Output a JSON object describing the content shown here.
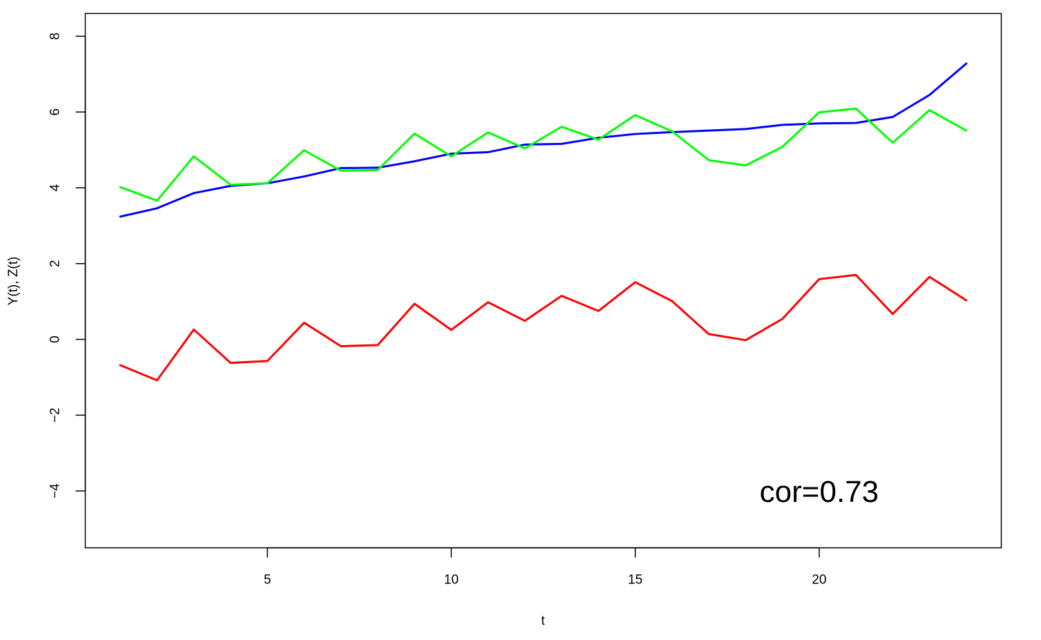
{
  "chart_data": {
    "type": "line",
    "xlabel": "t",
    "ylabel": "Y(t), Z(t)",
    "xlim": [
      0.05,
      24.95
    ],
    "ylim": [
      -5.5,
      8.6
    ],
    "xticks": [
      5,
      10,
      15,
      20
    ],
    "yticks": [
      -4,
      -2,
      0,
      2,
      4,
      6,
      8
    ],
    "x": [
      1,
      2,
      3,
      4,
      5,
      6,
      7,
      8,
      9,
      10,
      11,
      12,
      13,
      14,
      15,
      16,
      17,
      18,
      19,
      20,
      21,
      22,
      23,
      24
    ],
    "series": [
      {
        "color": "#0000ff",
        "values": [
          3.24,
          3.46,
          3.86,
          4.05,
          4.12,
          4.3,
          4.52,
          4.53,
          4.7,
          4.9,
          4.94,
          5.14,
          5.16,
          5.32,
          5.42,
          5.47,
          5.51,
          5.55,
          5.66,
          5.7,
          5.71,
          5.87,
          6.45,
          7.28
        ]
      },
      {
        "color": "#00ff00",
        "values": [
          4.02,
          3.66,
          4.83,
          4.08,
          4.12,
          4.99,
          4.45,
          4.47,
          5.43,
          4.83,
          5.46,
          5.04,
          5.61,
          5.27,
          5.92,
          5.49,
          4.73,
          4.59,
          5.08,
          5.99,
          6.09,
          5.19,
          6.05,
          5.51
        ]
      },
      {
        "color": "#ff0000",
        "values": [
          -0.68,
          -1.08,
          0.26,
          -0.62,
          -0.57,
          0.44,
          -0.18,
          -0.15,
          0.94,
          0.25,
          0.98,
          0.49,
          1.15,
          0.75,
          1.51,
          1.01,
          0.14,
          -0.02,
          0.54,
          1.59,
          1.7,
          0.67,
          1.65,
          1.03
        ]
      }
    ],
    "annotation": {
      "text": "cor=0.73",
      "x": 20,
      "y": -4
    }
  }
}
